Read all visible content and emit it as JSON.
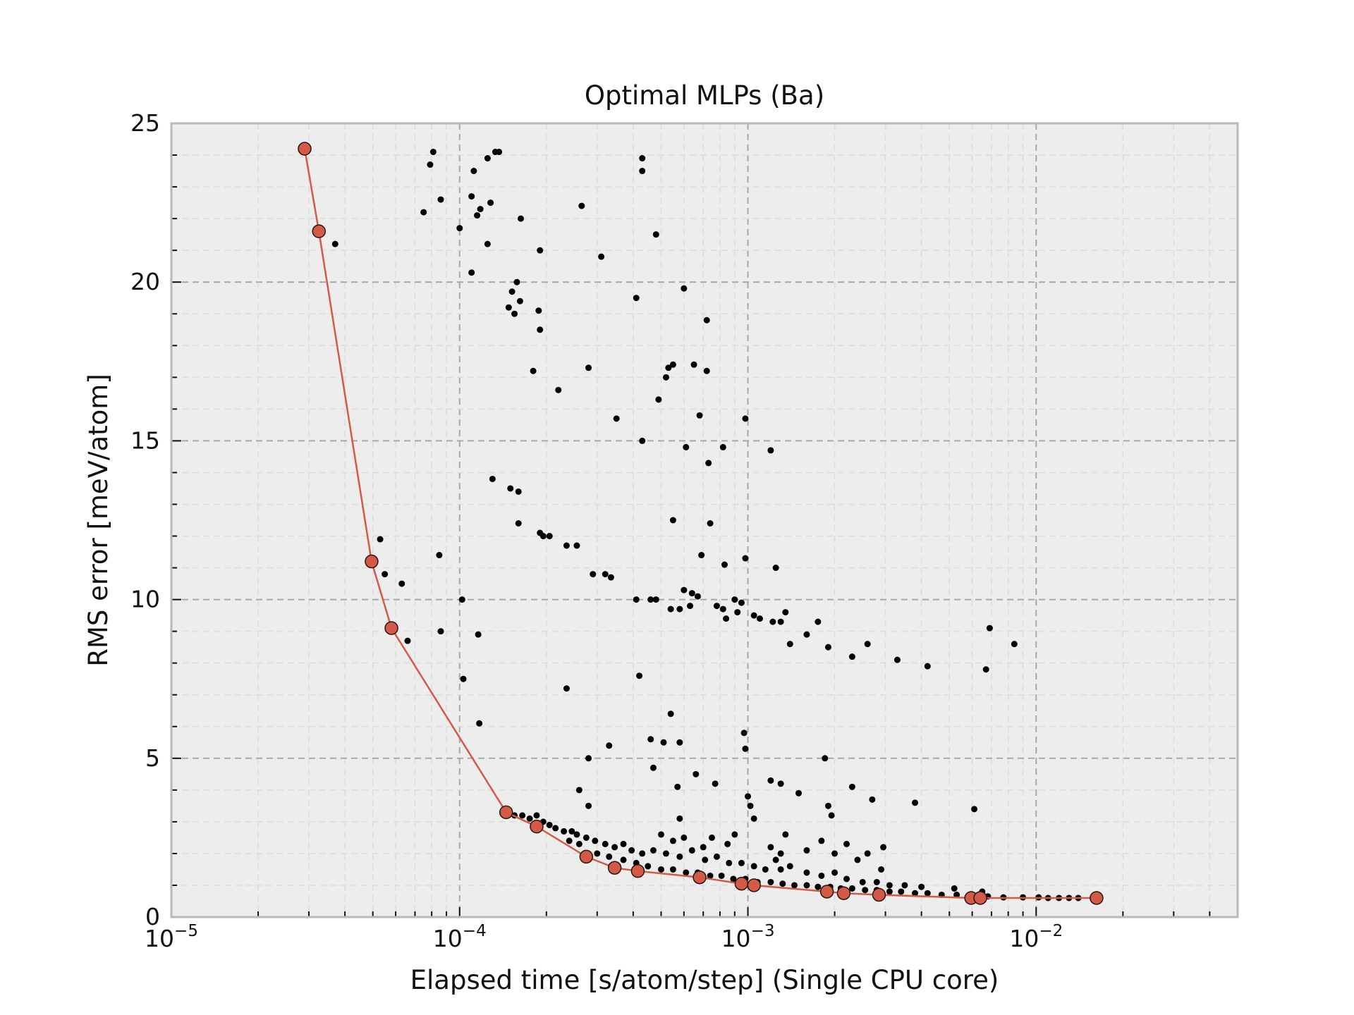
{
  "chart_data": {
    "type": "scatter",
    "title": "Optimal MLPs (Ba)",
    "xlabel": "Elapsed time [s/atom/step] (Single CPU core)",
    "ylabel": "RMS error [meV/atom]",
    "x_scale": "log",
    "xlim": [
      1e-05,
      0.05
    ],
    "ylim": [
      0,
      25
    ],
    "x_ticks": [
      {
        "value": 1e-05,
        "base": "10",
        "exp": "−5"
      },
      {
        "value": 0.0001,
        "base": "10",
        "exp": "−4"
      },
      {
        "value": 0.001,
        "base": "10",
        "exp": "−3"
      },
      {
        "value": 0.01,
        "base": "10",
        "exp": "−2"
      }
    ],
    "y_ticks": [
      0,
      5,
      10,
      15,
      20,
      25
    ],
    "y_tick_labels": [
      "0",
      "5",
      "10",
      "15",
      "20",
      "25"
    ],
    "grid": true,
    "background_color": "#ededed",
    "series": [
      {
        "marker": "small black dots",
        "color": "#000000",
        "points": [
          [
            7.5e-05,
            22.2
          ],
          [
            7.9e-05,
            23.7
          ],
          [
            8.1e-05,
            24.1
          ],
          [
            8.6e-05,
            22.6
          ],
          [
            0.0001,
            21.7
          ],
          [
            0.00011,
            22.7
          ],
          [
            0.000112,
            23.5
          ],
          [
            0.000115,
            22.1
          ],
          [
            0.000118,
            22.3
          ],
          [
            0.000125,
            23.9
          ],
          [
            0.000128,
            22.5
          ],
          [
            0.000133,
            24.1
          ],
          [
            0.000137,
            24.1
          ],
          [
            0.000125,
            21.2
          ],
          [
            0.00011,
            20.3
          ],
          [
            0.000158,
            20.0
          ],
          [
            0.000163,
            22.0
          ],
          [
            0.00019,
            21.0
          ],
          [
            0.000265,
            22.4
          ],
          [
            0.00031,
            20.8
          ],
          [
            0.00043,
            23.9
          ],
          [
            0.00043,
            23.5
          ],
          [
            0.00048,
            21.5
          ],
          [
            0.000152,
            19.7
          ],
          [
            0.000162,
            19.4
          ],
          [
            0.000148,
            19.2
          ],
          [
            0.000155,
            19.0
          ],
          [
            0.000188,
            19.1
          ],
          [
            0.00019,
            18.5
          ],
          [
            0.00018,
            17.2
          ],
          [
            0.00022,
            16.6
          ],
          [
            0.00028,
            17.3
          ],
          [
            0.00041,
            19.5
          ],
          [
            0.00055,
            17.4
          ],
          [
            0.00053,
            17.3
          ],
          [
            0.00052,
            17.0
          ],
          [
            0.00049,
            16.3
          ],
          [
            0.0006,
            19.8
          ],
          [
            0.00065,
            17.4
          ],
          [
            0.00072,
            18.8
          ],
          [
            0.00072,
            17.2
          ],
          [
            0.00035,
            15.7
          ],
          [
            0.00043,
            15.0
          ],
          [
            0.00068,
            15.8
          ],
          [
            0.00061,
            14.8
          ],
          [
            0.00073,
            14.3
          ],
          [
            0.00082,
            14.8
          ],
          [
            0.00098,
            15.7
          ],
          [
            0.0012,
            14.7
          ],
          [
            0.00013,
            13.8
          ],
          [
            0.00015,
            13.5
          ],
          [
            0.00016,
            13.4
          ],
          [
            0.00016,
            12.4
          ],
          [
            0.00019,
            12.1
          ],
          [
            0.000195,
            12.0
          ],
          [
            0.000205,
            12.0
          ],
          [
            0.000235,
            11.7
          ],
          [
            0.000255,
            11.7
          ],
          [
            0.00029,
            10.8
          ],
          [
            0.00032,
            10.8
          ],
          [
            0.000335,
            10.7
          ],
          [
            0.00055,
            12.5
          ],
          [
            0.00074,
            12.4
          ],
          [
            0.00069,
            11.4
          ],
          [
            0.00083,
            11.1
          ],
          [
            0.00098,
            11.3
          ],
          [
            0.00125,
            11.0
          ],
          [
            0.00041,
            10.0
          ],
          [
            0.00046,
            10.0
          ],
          [
            0.00048,
            10.0
          ],
          [
            0.0006,
            10.3
          ],
          [
            0.00064,
            10.2
          ],
          [
            0.00067,
            10.1
          ],
          [
            0.00054,
            9.7
          ],
          [
            0.00058,
            9.7
          ],
          [
            0.00063,
            9.8
          ],
          [
            0.00078,
            9.8
          ],
          [
            0.00082,
            9.7
          ],
          [
            0.0009,
            10.0
          ],
          [
            0.00095,
            9.9
          ],
          [
            0.00084,
            9.4
          ],
          [
            0.00092,
            9.6
          ],
          [
            0.00105,
            9.5
          ],
          [
            0.0011,
            9.4
          ],
          [
            0.00122,
            9.3
          ],
          [
            0.0013,
            9.3
          ],
          [
            0.00135,
            9.6
          ],
          [
            0.0014,
            8.6
          ],
          [
            0.0016,
            8.9
          ],
          [
            0.00175,
            9.3
          ],
          [
            0.0019,
            8.5
          ],
          [
            0.0023,
            8.2
          ],
          [
            0.0026,
            8.6
          ],
          [
            0.0033,
            8.1
          ],
          [
            0.0042,
            7.9
          ],
          [
            0.0067,
            7.8
          ],
          [
            0.0069,
            9.1
          ],
          [
            0.0084,
            8.6
          ],
          [
            5.3e-05,
            11.9
          ],
          [
            5.5e-05,
            10.8
          ],
          [
            6.3e-05,
            10.5
          ],
          [
            6.6e-05,
            8.7
          ],
          [
            8.5e-05,
            11.4
          ],
          [
            8.6e-05,
            9.0
          ],
          [
            0.000102,
            10.0
          ],
          [
            0.000116,
            8.9
          ],
          [
            0.000103,
            7.5
          ],
          [
            0.000117,
            6.1
          ],
          [
            0.000235,
            7.2
          ],
          [
            0.00042,
            7.6
          ],
          [
            0.00054,
            6.4
          ],
          [
            0.00046,
            5.6
          ],
          [
            0.00051,
            5.5
          ],
          [
            0.00058,
            5.5
          ],
          [
            0.00033,
            5.4
          ],
          [
            0.00028,
            5.0
          ],
          [
            0.00047,
            4.7
          ],
          [
            0.00066,
            4.5
          ],
          [
            0.00057,
            4.1
          ],
          [
            0.00077,
            4.2
          ],
          [
            0.00097,
            5.8
          ],
          [
            0.00098,
            5.3
          ],
          [
            0.001,
            3.8
          ],
          [
            0.0012,
            4.3
          ],
          [
            0.0013,
            4.2
          ],
          [
            0.0015,
            3.9
          ],
          [
            0.00185,
            5.0
          ],
          [
            0.0019,
            3.5
          ],
          [
            0.00195,
            3.2
          ],
          [
            0.0023,
            4.1
          ],
          [
            0.0027,
            3.7
          ],
          [
            0.00102,
            3.5
          ],
          [
            0.00105,
            3.1
          ],
          [
            0.00058,
            3.1
          ],
          [
            0.00026,
            4.0
          ],
          [
            0.00028,
            3.5
          ],
          [
            0.0038,
            3.6
          ],
          [
            0.0061,
            3.4
          ],
          [
            3.7e-05,
            21.2
          ],
          [
            0.000155,
            3.2
          ],
          [
            0.000165,
            3.2
          ],
          [
            0.000175,
            3.1
          ],
          [
            0.000185,
            3.2
          ],
          [
            0.000195,
            3.0
          ],
          [
            0.000205,
            2.9
          ],
          [
            0.000215,
            2.8
          ],
          [
            0.00023,
            2.7
          ],
          [
            0.000245,
            2.7
          ],
          [
            0.000255,
            2.6
          ],
          [
            0.000275,
            2.5
          ],
          [
            0.000295,
            2.4
          ],
          [
            0.00032,
            2.3
          ],
          [
            0.000345,
            2.2
          ],
          [
            0.00037,
            2.3
          ],
          [
            0.000395,
            2.1
          ],
          [
            0.00043,
            2.0
          ],
          [
            0.00047,
            2.1
          ],
          [
            0.00052,
            2.0
          ],
          [
            0.00058,
            1.9
          ],
          [
            0.00064,
            2.1
          ],
          [
            0.00071,
            1.8
          ],
          [
            0.00078,
            1.9
          ],
          [
            0.00086,
            1.7
          ],
          [
            0.00095,
            1.7
          ],
          [
            0.00105,
            1.6
          ],
          [
            0.00115,
            1.5
          ],
          [
            0.0013,
            1.5
          ],
          [
            0.0014,
            1.6
          ],
          [
            0.0016,
            1.4
          ],
          [
            0.0018,
            1.3
          ],
          [
            0.002,
            1.4
          ],
          [
            0.0022,
            1.2
          ],
          [
            0.0025,
            1.1
          ],
          [
            0.0028,
            1.1
          ],
          [
            0.0031,
            1.0
          ],
          [
            0.00024,
            2.4
          ],
          [
            0.00026,
            2.3
          ],
          [
            0.0003,
            2.0
          ],
          [
            0.00033,
            1.9
          ],
          [
            0.00037,
            1.8
          ],
          [
            0.00041,
            1.7
          ],
          [
            0.00045,
            1.6
          ],
          [
            0.0005,
            1.5
          ],
          [
            0.00055,
            1.5
          ],
          [
            0.00061,
            1.4
          ],
          [
            0.00067,
            1.4
          ],
          [
            0.00074,
            1.3
          ],
          [
            0.00081,
            1.3
          ],
          [
            0.00089,
            1.2
          ],
          [
            0.00098,
            1.2
          ],
          [
            0.00108,
            1.1
          ],
          [
            0.0012,
            1.1
          ],
          [
            0.00132,
            1.05
          ],
          [
            0.00145,
            1.0
          ],
          [
            0.0016,
            1.0
          ],
          [
            0.00175,
            0.95
          ],
          [
            0.00193,
            0.95
          ],
          [
            0.0021,
            0.9
          ],
          [
            0.0023,
            0.9
          ],
          [
            0.00255,
            0.85
          ],
          [
            0.0028,
            0.85
          ],
          [
            0.0031,
            0.8
          ],
          [
            0.0034,
            0.8
          ],
          [
            0.0038,
            0.75
          ],
          [
            0.0042,
            0.75
          ],
          [
            0.0047,
            0.7
          ],
          [
            0.0053,
            0.7
          ],
          [
            0.006,
            0.65
          ],
          [
            0.0068,
            0.65
          ],
          [
            0.0077,
            0.62
          ],
          [
            0.009,
            0.62
          ],
          [
            0.0102,
            0.62
          ],
          [
            0.011,
            0.6
          ],
          [
            0.012,
            0.6
          ],
          [
            0.013,
            0.6
          ],
          [
            0.014,
            0.6
          ],
          [
            0.0052,
            0.9
          ],
          [
            0.0065,
            0.8
          ],
          [
            0.004,
            0.95
          ],
          [
            0.0035,
            1.0
          ],
          [
            0.0029,
            1.5
          ],
          [
            0.00295,
            2.2
          ],
          [
            0.0026,
            2.0
          ],
          [
            0.0024,
            1.8
          ],
          [
            0.0022,
            2.3
          ],
          [
            0.002,
            2.0
          ],
          [
            0.0018,
            2.4
          ],
          [
            0.0016,
            2.1
          ],
          [
            0.00135,
            2.6
          ],
          [
            0.0013,
            2.0
          ],
          [
            0.00125,
            1.8
          ],
          [
            0.0012,
            2.2
          ],
          [
            0.0009,
            2.6
          ],
          [
            0.00085,
            2.3
          ],
          [
            0.00075,
            2.5
          ],
          [
            0.0007,
            2.2
          ],
          [
            0.0006,
            2.5
          ],
          [
            0.00055,
            2.4
          ],
          [
            0.0005,
            2.6
          ]
        ]
      },
      {
        "marker": "circle with connecting line (Pareto front)",
        "color": "#d45a48",
        "points": [
          [
            2.9e-05,
            24.2
          ],
          [
            3.25e-05,
            21.6
          ],
          [
            4.95e-05,
            11.2
          ],
          [
            5.8e-05,
            9.1
          ],
          [
            0.000145,
            3.3
          ],
          [
            0.000185,
            2.85
          ],
          [
            0.000275,
            1.9
          ],
          [
            0.000345,
            1.55
          ],
          [
            0.000415,
            1.45
          ],
          [
            0.00068,
            1.25
          ],
          [
            0.00095,
            1.05
          ],
          [
            0.00105,
            1.0
          ],
          [
            0.00188,
            0.8
          ],
          [
            0.00215,
            0.75
          ],
          [
            0.00285,
            0.7
          ],
          [
            0.00595,
            0.6
          ],
          [
            0.0064,
            0.6
          ],
          [
            0.0162,
            0.6
          ]
        ]
      }
    ]
  }
}
